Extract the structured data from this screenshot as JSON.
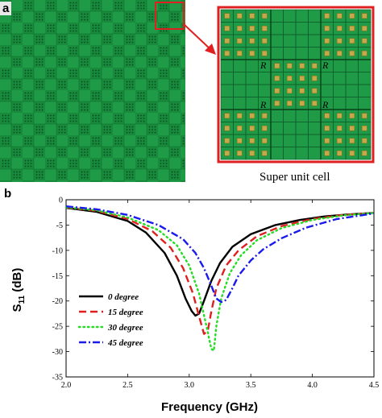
{
  "panels": {
    "a": {
      "label": "a",
      "caption": "Super unit cell",
      "cell_marker": "R",
      "colors": {
        "board": "#1f9a46",
        "dot": "#0c4a20",
        "pad": "#c5a84a",
        "highlight": "#e02020"
      }
    },
    "b": {
      "label": "b"
    }
  },
  "chart_data": {
    "type": "line",
    "title": "",
    "xlabel": "Frequency (GHz)",
    "ylabel_main": "S",
    "ylabel_sub": "11",
    "ylabel_unit": " (dB)",
    "xlim": [
      2.0,
      4.5
    ],
    "ylim": [
      -35,
      0
    ],
    "xticks": [
      2.0,
      2.5,
      3.0,
      3.5,
      4.0,
      4.5
    ],
    "xtick_labels": [
      "2.0",
      "2.5",
      "3.0",
      "3.5",
      "4.0",
      "4.5"
    ],
    "yticks": [
      0,
      -5,
      -10,
      -15,
      -20,
      -25,
      -30,
      -35
    ],
    "ytick_labels": [
      "0",
      "-5",
      "-10",
      "-15",
      "-20",
      "-25",
      "-30",
      "-35"
    ],
    "legend_position": "lower-left",
    "series": [
      {
        "name": "0 degree",
        "color": "#000000",
        "dash": "solid",
        "x": [
          2.0,
          2.25,
          2.5,
          2.65,
          2.8,
          2.9,
          2.97,
          3.02,
          3.05,
          3.08,
          3.12,
          3.18,
          3.25,
          3.35,
          3.5,
          3.7,
          3.9,
          4.1,
          4.3,
          4.5
        ],
        "y": [
          -1.6,
          -2.4,
          -4.2,
          -6.5,
          -10.5,
          -15.0,
          -19.5,
          -22.0,
          -22.9,
          -22.5,
          -20.0,
          -16.0,
          -12.5,
          -9.3,
          -6.8,
          -5.0,
          -4.0,
          -3.3,
          -2.9,
          -2.6
        ]
      },
      {
        "name": "15 degree",
        "color": "#e02020",
        "dash": "long-dash",
        "x": [
          2.0,
          2.25,
          2.5,
          2.7,
          2.85,
          2.95,
          3.03,
          3.08,
          3.12,
          3.15,
          3.18,
          3.22,
          3.3,
          3.4,
          3.55,
          3.75,
          4.0,
          4.25,
          4.5
        ],
        "y": [
          -1.5,
          -2.2,
          -3.8,
          -6.2,
          -9.5,
          -13.5,
          -18.5,
          -23.0,
          -26.5,
          -26.0,
          -22.0,
          -17.5,
          -13.0,
          -10.0,
          -7.2,
          -5.2,
          -3.8,
          -3.0,
          -2.6
        ]
      },
      {
        "name": "30 degree",
        "color": "#22dd22",
        "dash": "dotted",
        "x": [
          2.0,
          2.25,
          2.5,
          2.75,
          2.9,
          3.0,
          3.08,
          3.14,
          3.18,
          3.2,
          3.22,
          3.26,
          3.33,
          3.42,
          3.55,
          3.75,
          4.0,
          4.25,
          4.5
        ],
        "y": [
          -1.5,
          -2.1,
          -3.5,
          -6.0,
          -9.0,
          -13.0,
          -18.5,
          -25.0,
          -29.5,
          -29.8,
          -25.0,
          -19.5,
          -14.5,
          -11.0,
          -8.0,
          -5.6,
          -4.0,
          -3.1,
          -2.6
        ]
      },
      {
        "name": "45 degree",
        "color": "#1a1aee",
        "dash": "dash-dot",
        "x": [
          2.0,
          2.25,
          2.5,
          2.75,
          2.95,
          3.05,
          3.12,
          3.18,
          3.22,
          3.26,
          3.3,
          3.35,
          3.4,
          3.5,
          3.6,
          3.75,
          3.95,
          4.2,
          4.5
        ],
        "y": [
          -1.3,
          -1.9,
          -3.0,
          -5.0,
          -7.8,
          -10.5,
          -13.5,
          -17.0,
          -19.5,
          -20.2,
          -19.8,
          -17.5,
          -15.0,
          -12.0,
          -9.8,
          -7.6,
          -5.5,
          -3.8,
          -2.7
        ]
      }
    ]
  }
}
